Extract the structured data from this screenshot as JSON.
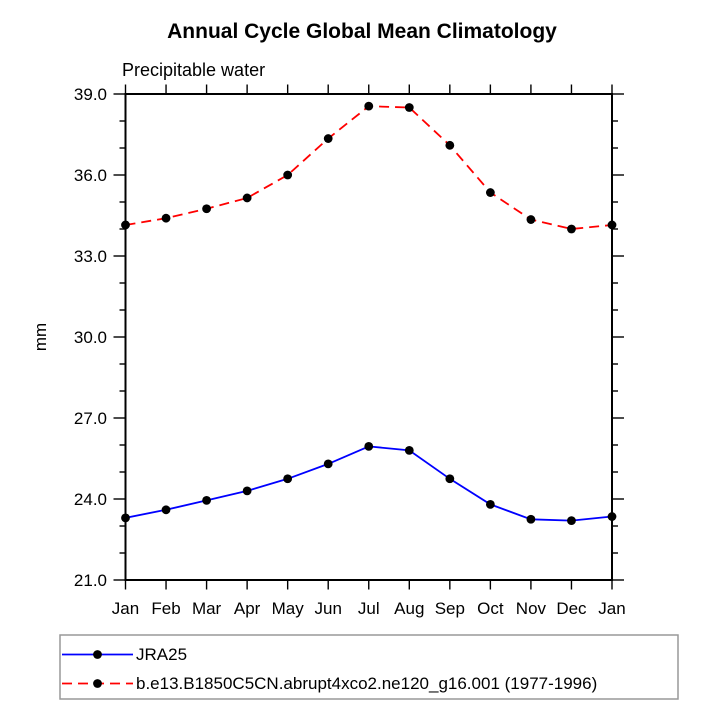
{
  "chart_data": {
    "type": "line",
    "title": "Annual Cycle Global Mean Climatology",
    "subtitle": "Precipitable water",
    "ylabel": "mm",
    "x_categories": [
      "Jan",
      "Feb",
      "Mar",
      "Apr",
      "May",
      "Jun",
      "Jul",
      "Aug",
      "Sep",
      "Oct",
      "Nov",
      "Dec",
      "Jan"
    ],
    "ylim": [
      21.0,
      39.0
    ],
    "ytick_major_interval": 3.0,
    "ytick_minor_interval": 1.0,
    "ytick_labels": [
      "21.0",
      "24.0",
      "27.0",
      "30.0",
      "33.0",
      "36.0",
      "39.0"
    ],
    "grid": false,
    "legend_position": "bottom-left-box",
    "colors": {
      "axis": "#000000",
      "marker": "#000000",
      "series_blue": "#0000ff",
      "series_red": "#ff0000",
      "legend_border": "#999999"
    },
    "series": [
      {
        "name": "JRA25",
        "color": "#0000ff",
        "line_style": "solid",
        "marker": "filled-circle",
        "marker_color": "#000000",
        "values": [
          23.3,
          23.6,
          23.95,
          24.3,
          24.75,
          25.3,
          25.95,
          25.8,
          24.75,
          23.8,
          23.25,
          23.2,
          23.35
        ]
      },
      {
        "name": "b.e13.B1850C5CN.abrupt4xco2.ne120_g16.001 (1977-1996)",
        "color": "#ff0000",
        "line_style": "dashed",
        "marker": "filled-circle",
        "marker_color": "#000000",
        "values": [
          34.15,
          34.4,
          34.75,
          35.15,
          36.0,
          37.35,
          38.55,
          38.5,
          37.1,
          35.35,
          34.35,
          34.0,
          34.15
        ]
      }
    ]
  }
}
